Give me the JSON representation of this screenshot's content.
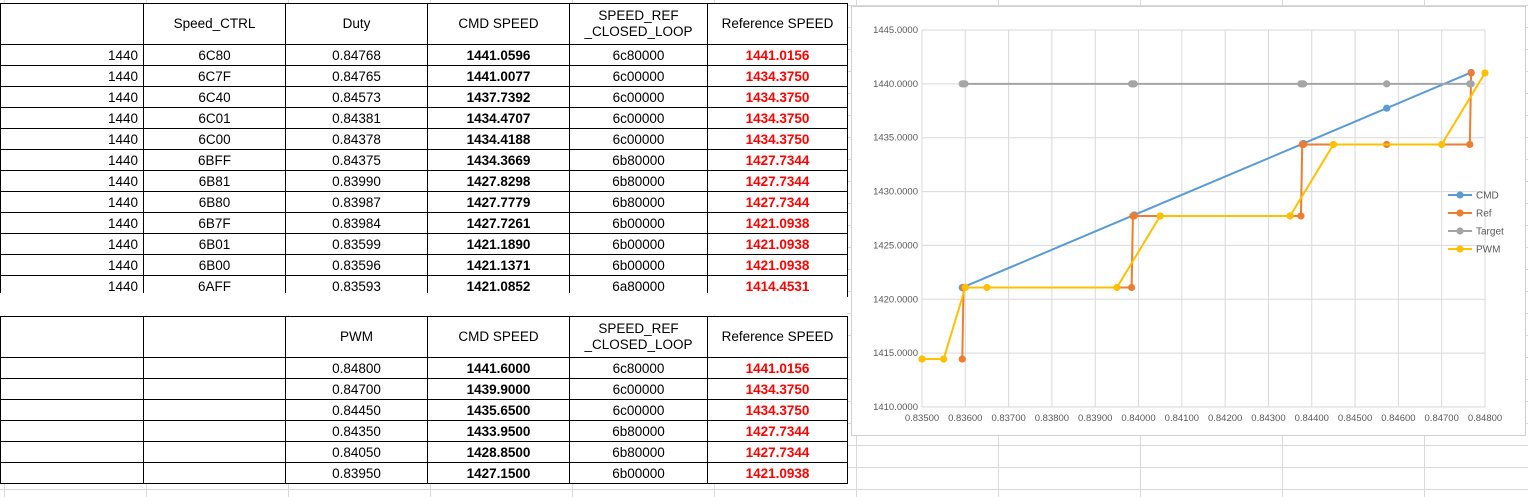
{
  "table1": {
    "headers": [
      "",
      "Speed_CTRL",
      "Duty",
      "CMD SPEED",
      "SPEED_REF\n_CLOSED_LOOP",
      "Reference SPEED"
    ],
    "rows": [
      [
        "1440",
        "6C80",
        "0.84768",
        "1441.0596",
        "6c80000",
        "1441.0156"
      ],
      [
        "1440",
        "6C7F",
        "0.84765",
        "1441.0077",
        "6c00000",
        "1434.3750"
      ],
      [
        "1440",
        "6C40",
        "0.84573",
        "1437.7392",
        "6c00000",
        "1434.3750"
      ],
      [
        "1440",
        "6C01",
        "0.84381",
        "1434.4707",
        "6c00000",
        "1434.3750"
      ],
      [
        "1440",
        "6C00",
        "0.84378",
        "1434.4188",
        "6c00000",
        "1434.3750"
      ],
      [
        "1440",
        "6BFF",
        "0.84375",
        "1434.3669",
        "6b80000",
        "1427.7344"
      ],
      [
        "1440",
        "6B81",
        "0.83990",
        "1427.8298",
        "6b80000",
        "1427.7344"
      ],
      [
        "1440",
        "6B80",
        "0.83987",
        "1427.7779",
        "6b80000",
        "1427.7344"
      ],
      [
        "1440",
        "6B7F",
        "0.83984",
        "1427.7261",
        "6b00000",
        "1421.0938"
      ],
      [
        "1440",
        "6B01",
        "0.83599",
        "1421.1890",
        "6b00000",
        "1421.0938"
      ],
      [
        "1440",
        "6B00",
        "0.83596",
        "1421.1371",
        "6b00000",
        "1421.0938"
      ],
      [
        "1440",
        "6AFF",
        "0.83593",
        "1421.0852",
        "6a80000",
        "1414.4531"
      ]
    ]
  },
  "table2": {
    "headers": [
      "",
      "",
      "PWM",
      "CMD SPEED",
      "SPEED_REF\n_CLOSED_LOOP",
      "Reference SPEED"
    ],
    "rows": [
      [
        "",
        "",
        "0.84800",
        "1441.6000",
        "6c80000",
        "1441.0156"
      ],
      [
        "",
        "",
        "0.84700",
        "1439.9000",
        "6c00000",
        "1434.3750"
      ],
      [
        "",
        "",
        "0.84450",
        "1435.6500",
        "6c00000",
        "1434.3750"
      ],
      [
        "",
        "",
        "0.84350",
        "1433.9500",
        "6b80000",
        "1427.7344"
      ],
      [
        "",
        "",
        "0.84050",
        "1428.8500",
        "6b80000",
        "1427.7344"
      ],
      [
        "",
        "",
        "0.83950",
        "1427.1500",
        "6b00000",
        "1421.0938"
      ]
    ]
  },
  "colors": {
    "cmd": "#5b9bd5",
    "ref": "#ed7d31",
    "target": "#a5a5a5",
    "pwm": "#ffc000",
    "red_text": "#ff0000"
  },
  "chart_data": {
    "type": "scatter",
    "title": "",
    "xlabel": "",
    "ylabel": "",
    "xlim": [
      0.835,
      0.848
    ],
    "ylim": [
      1410,
      1445
    ],
    "x_ticks": [
      "0.83500",
      "0.83600",
      "0.83700",
      "0.83800",
      "0.83900",
      "0.84000",
      "0.84100",
      "0.84200",
      "0.84300",
      "0.84400",
      "0.84500",
      "0.84600",
      "0.84700",
      "0.84800"
    ],
    "y_ticks": [
      "1445.0000",
      "1440.0000",
      "1435.0000",
      "1430.0000",
      "1425.0000",
      "1420.0000",
      "1415.0000",
      "1410.0000"
    ],
    "grid": true,
    "legend_position": "right",
    "series": [
      {
        "name": "CMD",
        "color": "#5b9bd5",
        "x": [
          0.83593,
          0.8399,
          0.84381,
          0.84573,
          0.84768
        ],
        "y": [
          1421.0852,
          1427.8298,
          1434.4707,
          1437.7392,
          1441.0596
        ]
      },
      {
        "name": "Ref",
        "color": "#ed7d31",
        "x": [
          0.83593,
          0.83596,
          0.83599,
          0.83984,
          0.83987,
          0.8399,
          0.84375,
          0.84378,
          0.84381,
          0.84573,
          0.84765,
          0.84768
        ],
        "y": [
          1414.4531,
          1421.0938,
          1421.0938,
          1421.0938,
          1427.7344,
          1427.7344,
          1427.7344,
          1434.375,
          1434.375,
          1434.375,
          1434.375,
          1441.0156
        ]
      },
      {
        "name": "Target",
        "color": "#a5a5a5",
        "x": [
          0.83593,
          0.83596,
          0.83599,
          0.83984,
          0.83987,
          0.8399,
          0.84375,
          0.84378,
          0.84381,
          0.84573,
          0.84765,
          0.84768
        ],
        "y": [
          1440,
          1440,
          1440,
          1440,
          1440,
          1440,
          1440,
          1440,
          1440,
          1440,
          1440,
          1440
        ]
      },
      {
        "name": "PWM",
        "color": "#ffc000",
        "x": [
          0.835,
          0.8355,
          0.836,
          0.8365,
          0.8395,
          0.8405,
          0.8435,
          0.8445,
          0.847,
          0.848
        ],
        "y": [
          1414.4531,
          1414.4531,
          1421.0938,
          1421.0938,
          1421.0938,
          1427.7344,
          1427.7344,
          1434.375,
          1434.375,
          1441.0156
        ]
      }
    ]
  }
}
